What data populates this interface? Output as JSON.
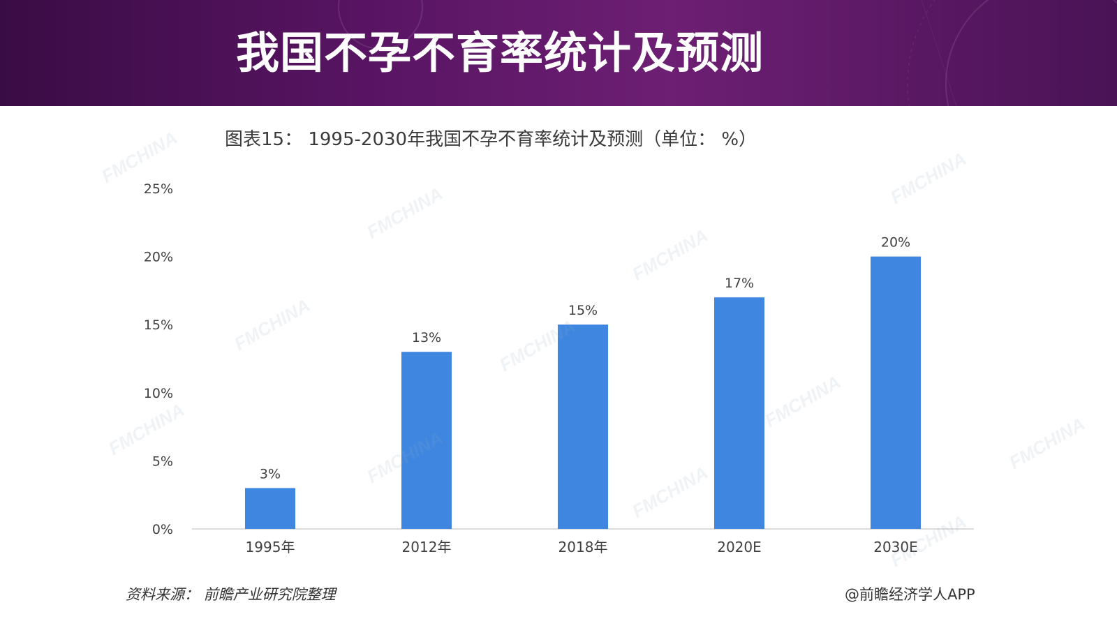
{
  "banner": {
    "title": "我国不孕不育率统计及预测"
  },
  "chart_data": {
    "type": "bar",
    "title": "图表15：  1995-2030年我国不孕不育率统计及预测（单位：  %）",
    "categories": [
      "1995年",
      "2012年",
      "2018年",
      "2020E",
      "2030E"
    ],
    "values": [
      3,
      13,
      15,
      17,
      20
    ],
    "data_labels": [
      "3%",
      "13%",
      "15%",
      "17%",
      "20%"
    ],
    "ylim": [
      0,
      25
    ],
    "yticks": [
      0,
      5,
      10,
      15,
      20,
      25
    ],
    "ytick_labels": [
      "0%",
      "5%",
      "10%",
      "15%",
      "20%",
      "25%"
    ],
    "grid": false,
    "bar_color": "#3f86e0"
  },
  "footer": {
    "source": "资料来源：  前瞻产业研究院整理",
    "credit": "@前瞻经济学人APP"
  },
  "watermark": "FMCHINA",
  "colors": {
    "banner_dark": "#3a0c45",
    "banner_mid": "#6d1f73",
    "bar": "#3f86e0"
  }
}
